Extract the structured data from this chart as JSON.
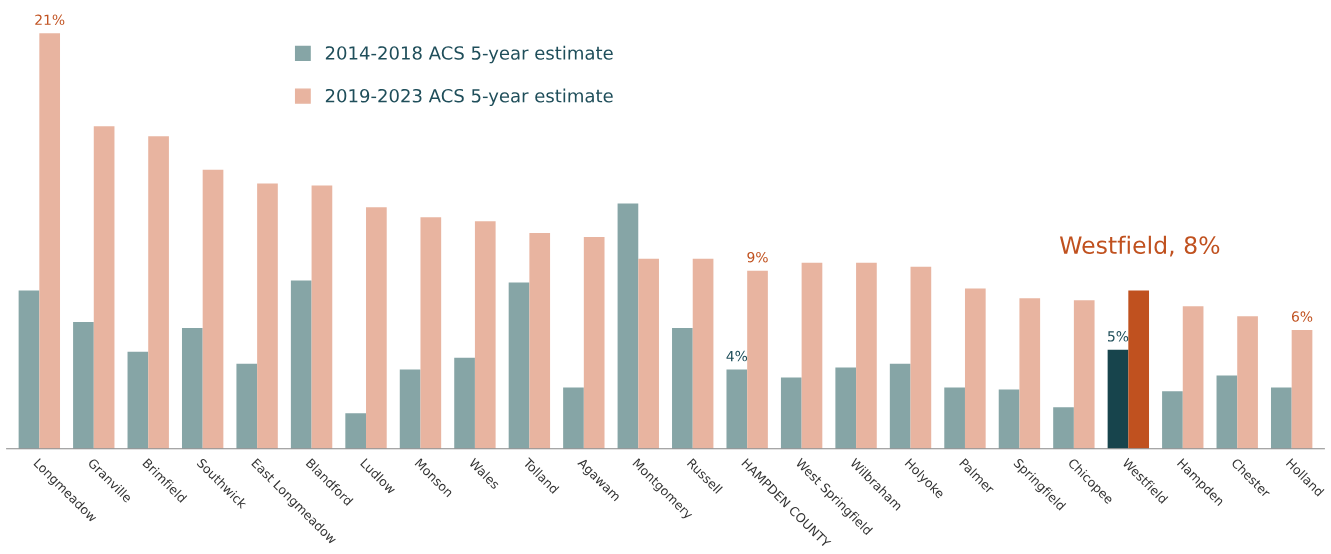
{
  "chart_data": {
    "type": "bar",
    "categories": [
      "Longmeadow",
      "Granville",
      "Brimfield",
      "Southwick",
      "East Longmeadow",
      "Blandford",
      "Ludlow",
      "Monson",
      "Wales",
      "Tolland",
      "Agawam",
      "Montgomery",
      "Russell",
      "HAMPDEN COUNTY",
      "West Springfield",
      "Wilbraham",
      "Holyoke",
      "Palmer",
      "Springfield",
      "Chicopee",
      "Westfield",
      "Hampden",
      "Chester",
      "Holland"
    ],
    "series": [
      {
        "name": "2014-2018 ACS 5-year estimate",
        "color": "#86a5a6",
        "colors": [
          "#86a5a6",
          "#86a5a6",
          "#86a5a6",
          "#86a5a6",
          "#86a5a6",
          "#86a5a6",
          "#86a5a6",
          "#86a5a6",
          "#86a5a6",
          "#86a5a6",
          "#86a5a6",
          "#86a5a6",
          "#86a5a6",
          "#86a5a6",
          "#86a5a6",
          "#86a5a6",
          "#86a5a6",
          "#86a5a6",
          "#86a5a6",
          "#86a5a6",
          "#17444c",
          "#86a5a6",
          "#86a5a6",
          "#86a5a6"
        ],
        "values": [
          8.0,
          6.4,
          4.9,
          6.1,
          4.3,
          8.5,
          1.8,
          4.0,
          4.6,
          8.4,
          3.1,
          12.4,
          6.1,
          4,
          3.6,
          4.1,
          4.3,
          3.1,
          3.0,
          2.1,
          5,
          2.9,
          3.7,
          3.1
        ],
        "value_labels": [
          null,
          null,
          null,
          null,
          null,
          null,
          null,
          null,
          null,
          null,
          null,
          null,
          null,
          "4%",
          null,
          null,
          null,
          null,
          null,
          null,
          "5%",
          null,
          null,
          null
        ]
      },
      {
        "name": "2019-2023 ACS 5-year estimate",
        "color": "#e8b4a0",
        "colors": [
          "#e8b4a0",
          "#e8b4a0",
          "#e8b4a0",
          "#e8b4a0",
          "#e8b4a0",
          "#e8b4a0",
          "#e8b4a0",
          "#e8b4a0",
          "#e8b4a0",
          "#e8b4a0",
          "#e8b4a0",
          "#e8b4a0",
          "#e8b4a0",
          "#e8b4a0",
          "#e8b4a0",
          "#e8b4a0",
          "#e8b4a0",
          "#e8b4a0",
          "#e8b4a0",
          "#e8b4a0",
          "#c0511f",
          "#e8b4a0",
          "#e8b4a0",
          "#e8b4a0"
        ],
        "values": [
          21,
          16.3,
          15.8,
          14.1,
          13.4,
          13.3,
          12.2,
          11.7,
          11.5,
          10.9,
          10.7,
          9.6,
          9.6,
          9,
          9.4,
          9.4,
          9.2,
          8.1,
          7.6,
          7.5,
          8,
          7.2,
          6.7,
          6
        ],
        "value_labels": [
          "21%",
          null,
          null,
          null,
          null,
          null,
          null,
          null,
          null,
          null,
          null,
          null,
          null,
          "9%",
          null,
          null,
          null,
          null,
          null,
          null,
          null,
          null,
          null,
          "6%"
        ]
      }
    ],
    "annotations": [
      "Westfield, 8%"
    ],
    "legend": "top",
    "grid": false
  }
}
